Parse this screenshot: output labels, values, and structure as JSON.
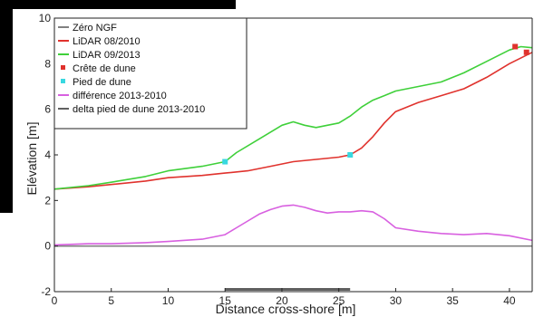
{
  "chart_data": {
    "type": "line",
    "xlabel": "Distance cross-shore [m]",
    "ylabel": "Elévation [m]",
    "xlim": [
      0,
      42
    ],
    "ylim": [
      -2,
      10
    ],
    "xticks": [
      0,
      5,
      10,
      15,
      20,
      25,
      30,
      35,
      40
    ],
    "yticks": [
      -2,
      0,
      2,
      4,
      6,
      8,
      10
    ],
    "grid": false,
    "legend_position": "top-left",
    "series": [
      {
        "name": "Zéro NGF",
        "color": "#808080",
        "x": [
          0,
          42
        ],
        "y": [
          0,
          0
        ]
      },
      {
        "name": "LiDAR 08/2010",
        "color": "#e0322d",
        "x": [
          0,
          3,
          5,
          8,
          10,
          13,
          15,
          17,
          19,
          21,
          23,
          25,
          26,
          27,
          28,
          29,
          30,
          32,
          34,
          36,
          38,
          40,
          42
        ],
        "y": [
          2.5,
          2.6,
          2.7,
          2.85,
          3.0,
          3.1,
          3.2,
          3.3,
          3.5,
          3.7,
          3.8,
          3.9,
          4.0,
          4.3,
          4.8,
          5.4,
          5.9,
          6.3,
          6.6,
          6.9,
          7.4,
          8.0,
          8.5
        ]
      },
      {
        "name": "LiDAR 09/2013",
        "color": "#3fd03a",
        "x": [
          0,
          3,
          5,
          8,
          10,
          13,
          15,
          16,
          18,
          20,
          21,
          22,
          23,
          24,
          25,
          26,
          27,
          28,
          29,
          30,
          32,
          34,
          36,
          38,
          40,
          41,
          42
        ],
        "y": [
          2.5,
          2.65,
          2.8,
          3.05,
          3.3,
          3.5,
          3.7,
          4.1,
          4.7,
          5.3,
          5.45,
          5.3,
          5.2,
          5.3,
          5.4,
          5.7,
          6.1,
          6.4,
          6.6,
          6.8,
          7.0,
          7.2,
          7.6,
          8.1,
          8.6,
          8.75,
          8.7
        ]
      },
      {
        "name": "Crête de dune",
        "color": "#e0322d",
        "marker": "point",
        "x": [
          40.5,
          41.5
        ],
        "y": [
          8.75,
          8.5
        ]
      },
      {
        "name": "Pied de dune",
        "color": "#38d8e0",
        "marker": "point",
        "x": [
          15,
          26
        ],
        "y": [
          3.7,
          4.0
        ]
      },
      {
        "name": "différence 2013-2010",
        "color": "#d860e0",
        "x": [
          0,
          3,
          5,
          8,
          10,
          13,
          15,
          16,
          17,
          18,
          19,
          20,
          21,
          22,
          23,
          24,
          25,
          26,
          27,
          28,
          29,
          30,
          32,
          34,
          36,
          38,
          40,
          42
        ],
        "y": [
          0.05,
          0.1,
          0.1,
          0.15,
          0.2,
          0.3,
          0.5,
          0.8,
          1.1,
          1.4,
          1.6,
          1.75,
          1.8,
          1.7,
          1.55,
          1.45,
          1.5,
          1.5,
          1.55,
          1.5,
          1.2,
          0.8,
          0.65,
          0.55,
          0.5,
          0.55,
          0.45,
          0.25
        ]
      },
      {
        "name": "delta pied de dune 2013-2010",
        "color": "#606060",
        "x": [
          15,
          26
        ],
        "y": [
          -1.9,
          -1.9
        ]
      }
    ]
  }
}
